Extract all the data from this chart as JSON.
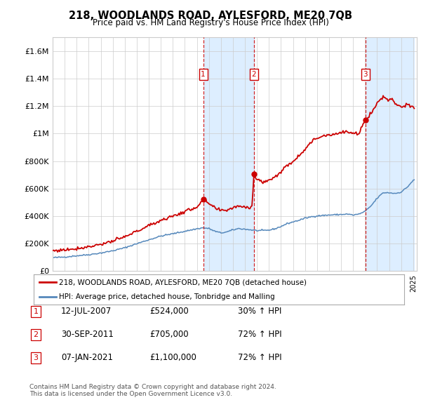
{
  "title": "218, WOODLANDS ROAD, AYLESFORD, ME20 7QB",
  "subtitle": "Price paid vs. HM Land Registry's House Price Index (HPI)",
  "transactions": [
    {
      "date_num": 2007.53,
      "price": 524000,
      "label": "1"
    },
    {
      "date_num": 2011.75,
      "price": 705000,
      "label": "2"
    },
    {
      "date_num": 2021.03,
      "price": 1100000,
      "label": "3"
    }
  ],
  "legend_property": "218, WOODLANDS ROAD, AYLESFORD, ME20 7QB (detached house)",
  "legend_hpi": "HPI: Average price, detached house, Tonbridge and Malling",
  "table_rows": [
    {
      "num": "1",
      "date": "12-JUL-2007",
      "price": "£524,000",
      "hpi": "30% ↑ HPI"
    },
    {
      "num": "2",
      "date": "30-SEP-2011",
      "price": "£705,000",
      "hpi": "72% ↑ HPI"
    },
    {
      "num": "3",
      "date": "07-JAN-2021",
      "price": "£1,100,000",
      "hpi": "72% ↑ HPI"
    }
  ],
  "footer1": "Contains HM Land Registry data © Crown copyright and database right 2024.",
  "footer2": "This data is licensed under the Open Government Licence v3.0.",
  "red_color": "#cc0000",
  "blue_color": "#5588bb",
  "shade_color": "#ddeeff",
  "background_color": "#ffffff",
  "grid_color": "#cccccc",
  "ylim": [
    0,
    1700000
  ],
  "yticks": [
    0,
    200000,
    400000,
    600000,
    800000,
    1000000,
    1200000,
    1400000,
    1600000
  ],
  "ytick_labels": [
    "£0",
    "£200K",
    "£400K",
    "£600K",
    "£800K",
    "£1M",
    "£1.2M",
    "£1.4M",
    "£1.6M"
  ]
}
